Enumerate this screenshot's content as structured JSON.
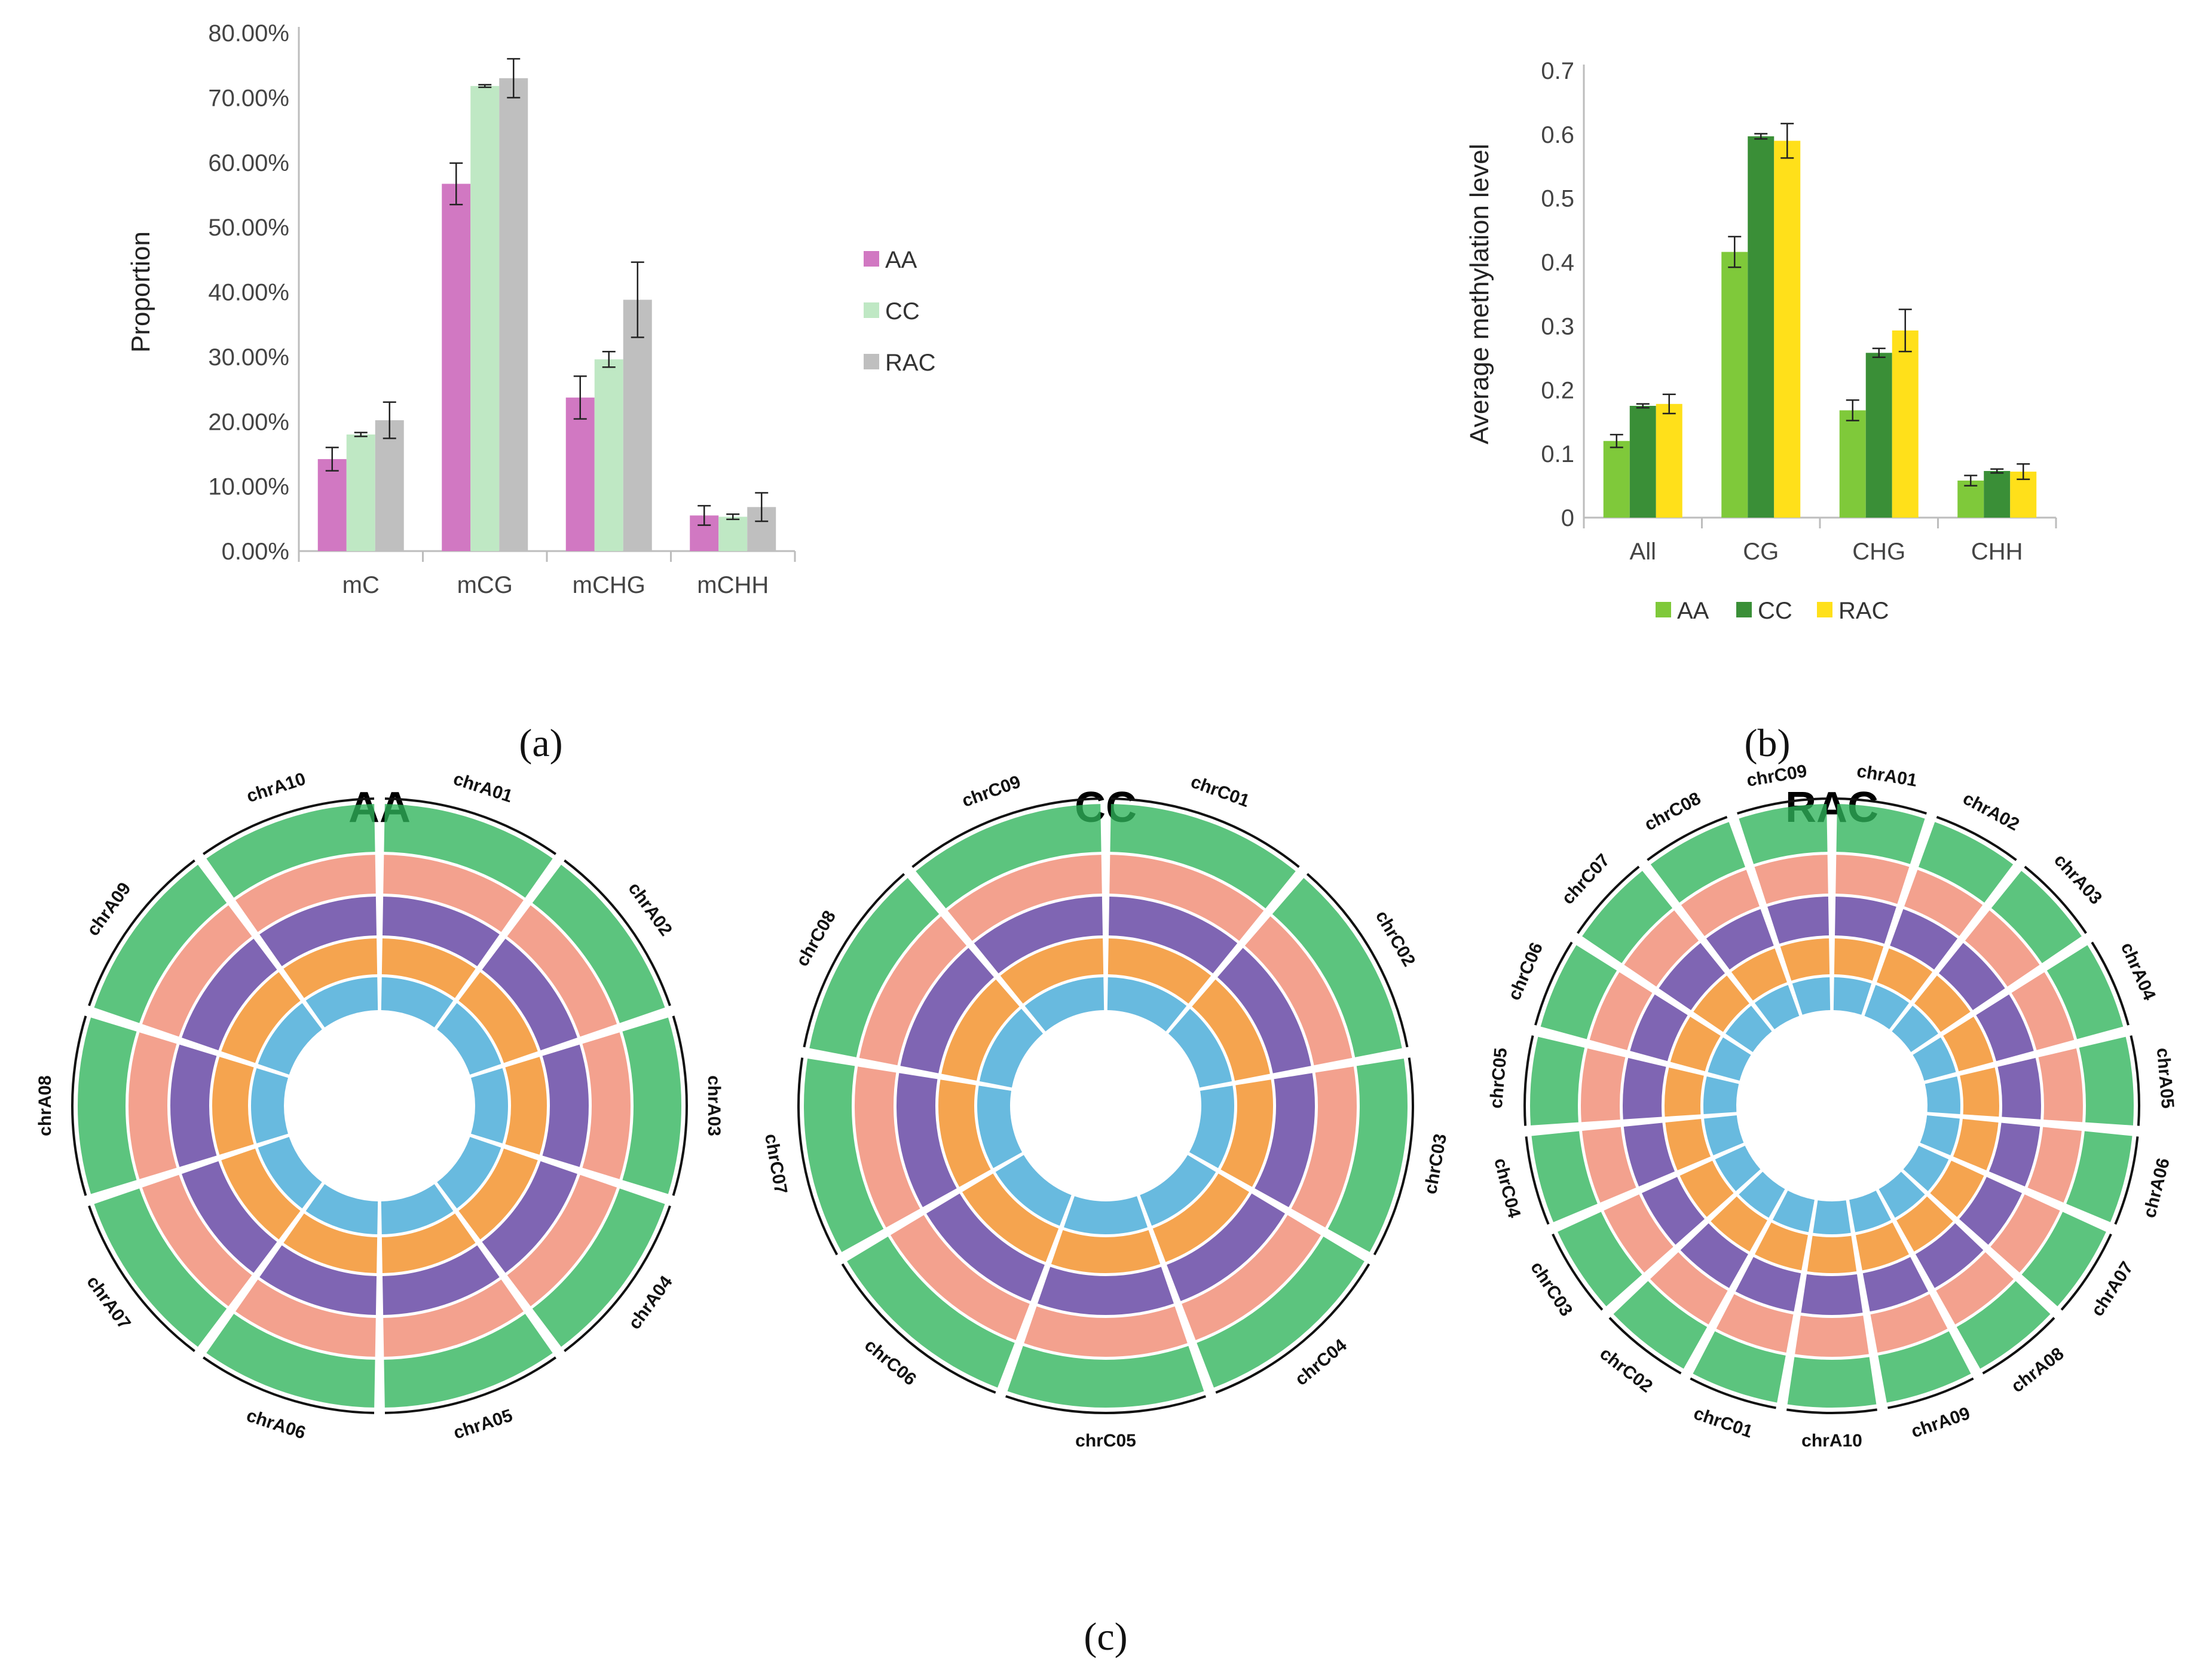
{
  "chart_data": [
    {
      "type": "bar",
      "panel": "(a)",
      "title": "",
      "xlabel": "",
      "ylabel": "Proportion",
      "categories": [
        "mC",
        "mCG",
        "mCHG",
        "mCHH"
      ],
      "ylim": [
        0,
        80
      ],
      "yticks": [
        "0.00%",
        "10.00%",
        "20.00%",
        "30.00%",
        "40.00%",
        "50.00%",
        "60.00%",
        "70.00%",
        "80.00%"
      ],
      "series": [
        {
          "name": "AA",
          "color": "#d178c2",
          "values": [
            14.2,
            56.7,
            23.7,
            5.5
          ],
          "errors": [
            1.8,
            3.2,
            3.3,
            1.5
          ]
        },
        {
          "name": "CC",
          "color": "#bfe8c4",
          "values": [
            18.0,
            71.8,
            29.6,
            5.3
          ],
          "errors": [
            0.3,
            0.2,
            1.2,
            0.4
          ]
        },
        {
          "name": "RAC",
          "color": "#bfbfbf",
          "values": [
            20.2,
            73.0,
            38.8,
            6.8
          ],
          "errors": [
            2.8,
            3.0,
            5.8,
            2.2
          ]
        }
      ],
      "legend": "right"
    },
    {
      "type": "bar",
      "panel": "(b)",
      "title": "",
      "xlabel": "",
      "ylabel": "Average methylation level",
      "categories": [
        "All",
        "CG",
        "CHG",
        "CHH"
      ],
      "ylim": [
        0,
        0.7
      ],
      "yticks": [
        "0",
        "0.1",
        "0.2",
        "0.3",
        "0.4",
        "0.5",
        "0.6",
        "0.7"
      ],
      "series": [
        {
          "name": "AA",
          "color": "#7fc93a",
          "values": [
            0.12,
            0.416,
            0.168,
            0.058
          ],
          "errors": [
            0.01,
            0.024,
            0.016,
            0.008
          ]
        },
        {
          "name": "CC",
          "color": "#3a8f37",
          "values": [
            0.175,
            0.597,
            0.258,
            0.073
          ],
          "errors": [
            0.003,
            0.004,
            0.007,
            0.003
          ]
        },
        {
          "name": "RAC",
          "color": "#ffe01a",
          "values": [
            0.178,
            0.59,
            0.293,
            0.072
          ],
          "errors": [
            0.015,
            0.027,
            0.033,
            0.012
          ]
        }
      ],
      "legend": "bottom"
    }
  ],
  "panel_c": {
    "label": "(c)",
    "plots": [
      {
        "title": "AA",
        "chromosomes": [
          "chrA01",
          "chrA02",
          "chrA03",
          "chrA04",
          "chrA05",
          "chrA06",
          "chrA07",
          "chrA08",
          "chrA09",
          "chrA10"
        ]
      },
      {
        "title": "CC",
        "chromosomes": [
          "chrC01",
          "chrC02",
          "chrC03",
          "chrC04",
          "chrC05",
          "chrC06",
          "chrC07",
          "chrC08",
          "chrC09"
        ]
      },
      {
        "title": "RAC",
        "chromosomes": [
          "chrA01",
          "chrA02",
          "chrA03",
          "chrA04",
          "chrA05",
          "chrA06",
          "chrA07",
          "chrA08",
          "chrA09",
          "chrA10",
          "chrC01",
          "chrC02",
          "chrC03",
          "chrC04",
          "chrC05",
          "chrC06",
          "chrC07",
          "chrC08",
          "chrC09"
        ]
      }
    ],
    "ring_colors": [
      "#2eb35a",
      "#f0876e",
      "#5b3a9e",
      "#f28a1e",
      "#3ea6d6"
    ]
  }
}
